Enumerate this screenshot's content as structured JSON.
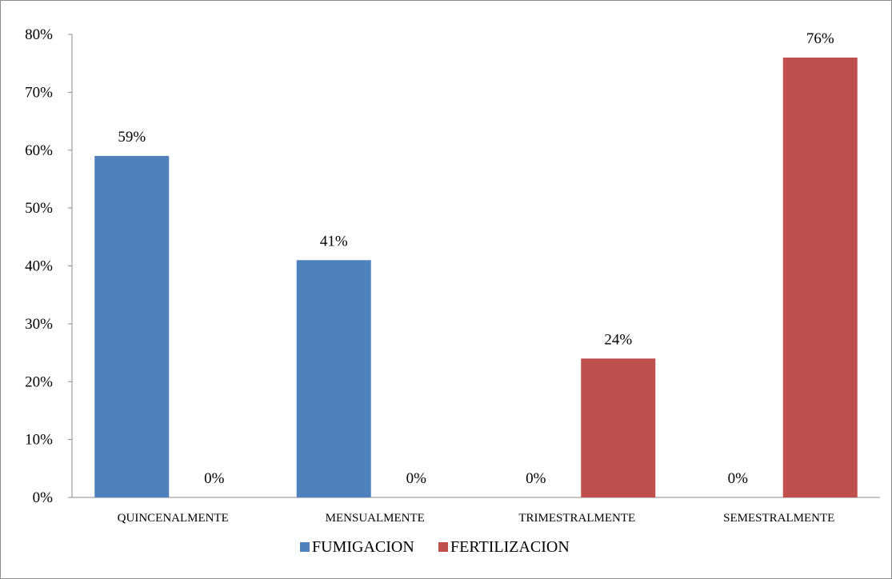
{
  "chart_data": {
    "type": "bar",
    "categories": [
      "QUINCENALMENTE",
      "MENSUALMENTE",
      "TRIMESTRALMENTE",
      "SEMESTRALMENTE"
    ],
    "series": [
      {
        "name": "FUMIGACION",
        "values": [
          59,
          41,
          0,
          0
        ],
        "color": "#4f81bd"
      },
      {
        "name": "FERTILIZACION",
        "values": [
          0,
          0,
          24,
          76
        ],
        "color": "#c0504d"
      }
    ],
    "data_labels": [
      [
        "59%",
        "41%",
        "0%",
        "0%"
      ],
      [
        "0%",
        "0%",
        "24%",
        "76%"
      ]
    ],
    "y_ticks": [
      "0%",
      "10%",
      "20%",
      "30%",
      "40%",
      "50%",
      "60%",
      "70%",
      "80%"
    ],
    "ylim": [
      0,
      80
    ],
    "grid": false,
    "legend_position": "bottom",
    "title": "",
    "xlabel": "",
    "ylabel": ""
  }
}
